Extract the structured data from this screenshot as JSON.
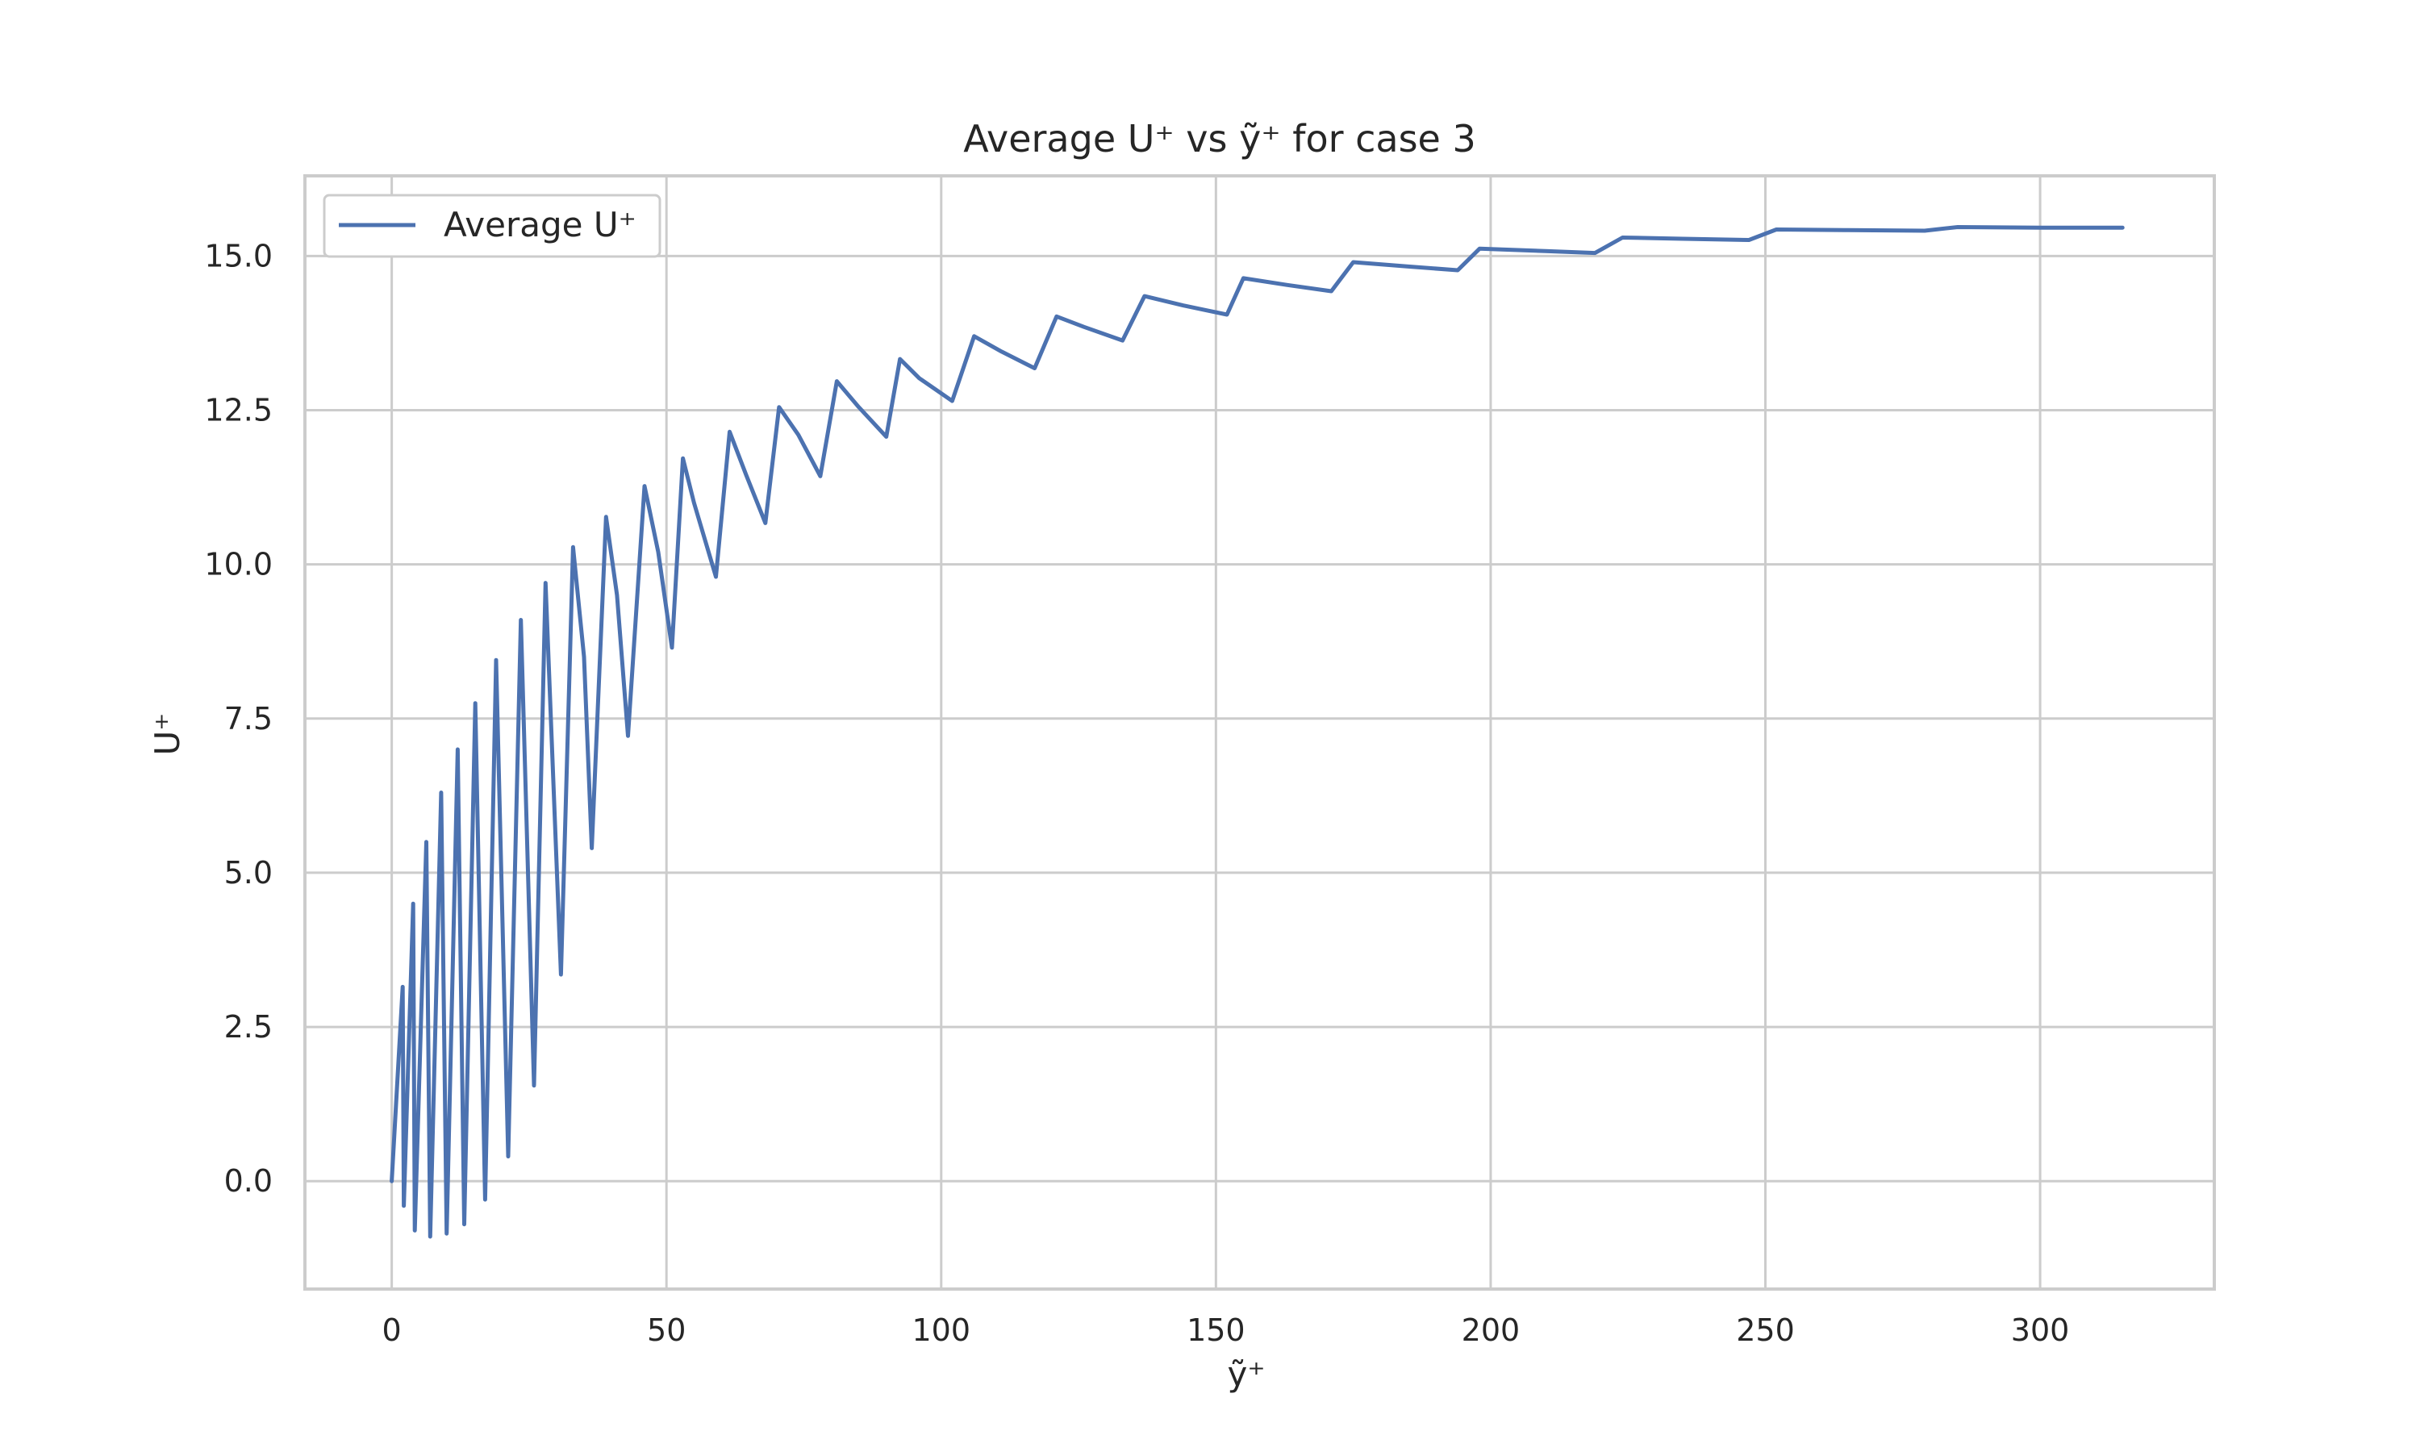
{
  "chart_data": {
    "type": "line",
    "title": "Average U⁺ vs ỹ⁺ for case 3",
    "xlabel": "ỹ⁺",
    "ylabel": "U⁺",
    "xlim": [
      -15.8,
      331.7
    ],
    "ylim": [
      -1.75,
      16.3
    ],
    "xticks": [
      0,
      50,
      100,
      150,
      200,
      250,
      300
    ],
    "xtick_labels": [
      "0",
      "50",
      "100",
      "150",
      "200",
      "250",
      "300"
    ],
    "yticks": [
      0,
      2.5,
      5,
      7.5,
      10,
      12.5,
      15
    ],
    "ytick_labels": [
      "0.0",
      "2.5",
      "5.0",
      "7.5",
      "10.0",
      "12.5",
      "15.0"
    ],
    "grid": true,
    "legend_position": "top-left",
    "series": [
      {
        "name": "Average U⁺",
        "color": "#4c72b0",
        "x": [
          0,
          2.0,
          2.2,
          3.9,
          4.2,
          6.3,
          7.0,
          9.0,
          10.0,
          12.0,
          13.2,
          15.2,
          17.0,
          19.0,
          21.2,
          23.5,
          25.9,
          28.0,
          29.0,
          30.8,
          33.0,
          35.0,
          36.4,
          39.0,
          41.0,
          43.0,
          46.0,
          48.5,
          51.0,
          53.0,
          55.0,
          59.0,
          61.5,
          64.5,
          68.0,
          70.5,
          74.0,
          78.0,
          81.0,
          85.0,
          90.0,
          92.5,
          96.0,
          102.0,
          106.0,
          111.0,
          117.0,
          121.0,
          126.0,
          133.0,
          137.0,
          144.0,
          152.0,
          155.0,
          163.0,
          171.0,
          175.0,
          185.0,
          194.0,
          198.0,
          210.0,
          219.0,
          224.0,
          235.0,
          247.0,
          252.0,
          265.0,
          279.0,
          285.0,
          300.0,
          315.0
        ],
        "values": [
          0,
          3.15,
          -0.4,
          4.5,
          -0.8,
          5.5,
          -0.9,
          6.3,
          -0.85,
          7.0,
          -0.7,
          7.75,
          -0.3,
          8.45,
          0.4,
          9.1,
          1.55,
          9.7,
          7.4,
          3.35,
          10.28,
          8.5,
          5.4,
          10.77,
          9.5,
          7.22,
          11.27,
          10.2,
          8.65,
          11.72,
          11.0,
          9.8,
          12.15,
          11.45,
          10.67,
          12.55,
          12.1,
          11.43,
          12.97,
          12.55,
          12.07,
          13.33,
          13.02,
          12.65,
          13.7,
          13.45,
          13.18,
          14.02,
          13.85,
          13.63,
          14.35,
          14.2,
          14.05,
          14.64,
          14.53,
          14.43,
          14.9,
          14.83,
          14.77,
          15.12,
          15.08,
          15.05,
          15.3,
          15.28,
          15.26,
          15.43,
          15.42,
          15.41,
          15.47,
          15.46,
          15.46
        ]
      }
    ]
  }
}
